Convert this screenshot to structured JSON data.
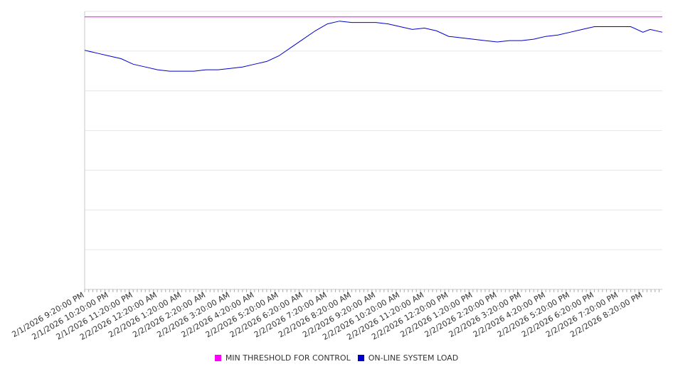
{
  "chart_data": {
    "type": "line",
    "title": "",
    "xlabel": "",
    "ylabel": "",
    "y_tick_labels_shown": false,
    "grid": "horizontal",
    "legend_position": "bottom",
    "x_tick_labels": [
      "2/1/2026 9:20:00 PM",
      "2/1/2026 10:20:00 PM",
      "2/1/2026 11:20:00 PM",
      "2/2/2026 12:20:00 AM",
      "2/2/2026 1:20:00 AM",
      "2/2/2026 2:20:00 AM",
      "2/2/2026 3:20:00 AM",
      "2/2/2026 4:20:00 AM",
      "2/2/2026 5:20:00 AM",
      "2/2/2026 6:20:00 AM",
      "2/2/2026 7:20:00 AM",
      "2/2/2026 8:20:00 AM",
      "2/2/2026 9:20:00 AM",
      "2/2/2026 10:20:00 AM",
      "2/2/2026 11:20:00 AM",
      "2/2/2026 12:20:00 PM",
      "2/2/2026 1:20:00 PM",
      "2/2/2026 2:20:00 PM",
      "2/2/2026 3:20:00 PM",
      "2/2/2026 4:20:00 PM",
      "2/2/2026 5:20:00 PM",
      "2/2/2026 6:20:00 PM",
      "2/2/2026 7:20:00 PM",
      "2/2/2026 8:20:00 PM"
    ],
    "x_range_hours_from_first_label": [
      0,
      23.8
    ],
    "y_range_fraction": [
      0,
      1
    ],
    "series": [
      {
        "name": "MIN THRESHOLD FOR CONTROL",
        "color": "#ff00ff",
        "points": [
          [
            0,
            0.98
          ],
          [
            23.8,
            0.98
          ]
        ]
      },
      {
        "name": "ON-LINE SYSTEM LOAD",
        "color": "#0000cc",
        "points": [
          [
            0,
            0.86
          ],
          [
            0.5,
            0.85
          ],
          [
            1.0,
            0.84
          ],
          [
            1.5,
            0.83
          ],
          [
            2.0,
            0.81
          ],
          [
            2.5,
            0.8
          ],
          [
            3.0,
            0.79
          ],
          [
            3.5,
            0.785
          ],
          [
            4.0,
            0.785
          ],
          [
            4.5,
            0.785
          ],
          [
            5.0,
            0.79
          ],
          [
            5.5,
            0.79
          ],
          [
            6.0,
            0.795
          ],
          [
            6.5,
            0.8
          ],
          [
            7.0,
            0.81
          ],
          [
            7.5,
            0.82
          ],
          [
            8.0,
            0.84
          ],
          [
            8.5,
            0.87
          ],
          [
            9.0,
            0.9
          ],
          [
            9.5,
            0.93
          ],
          [
            10.0,
            0.955
          ],
          [
            10.5,
            0.965
          ],
          [
            11.0,
            0.96
          ],
          [
            11.5,
            0.96
          ],
          [
            12.0,
            0.96
          ],
          [
            12.5,
            0.955
          ],
          [
            13.0,
            0.945
          ],
          [
            13.5,
            0.935
          ],
          [
            14.0,
            0.94
          ],
          [
            14.5,
            0.93
          ],
          [
            15.0,
            0.91
          ],
          [
            15.5,
            0.905
          ],
          [
            16.0,
            0.9
          ],
          [
            16.5,
            0.895
          ],
          [
            17.0,
            0.89
          ],
          [
            17.5,
            0.895
          ],
          [
            18.0,
            0.895
          ],
          [
            18.5,
            0.9
          ],
          [
            19.0,
            0.91
          ],
          [
            19.5,
            0.915
          ],
          [
            20.0,
            0.925
          ],
          [
            20.5,
            0.935
          ],
          [
            21.0,
            0.945
          ],
          [
            21.5,
            0.945
          ],
          [
            22.0,
            0.945
          ],
          [
            22.5,
            0.945
          ],
          [
            23.0,
            0.925
          ],
          [
            23.3,
            0.935
          ],
          [
            23.8,
            0.925
          ]
        ]
      }
    ]
  }
}
